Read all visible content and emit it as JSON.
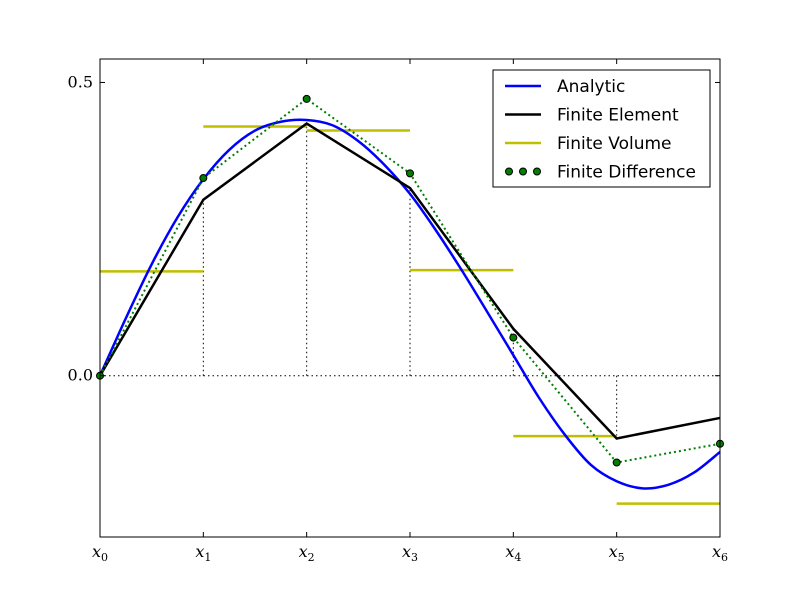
{
  "chart_data": {
    "type": "line",
    "title": "",
    "xlabel": "",
    "ylabel": "",
    "xlim": [
      0,
      6
    ],
    "ylim": [
      -0.275,
      0.54
    ],
    "grid": false,
    "legend_position": "top-right",
    "x_ticks": [
      {
        "value": 0,
        "base": "x",
        "sub": "0"
      },
      {
        "value": 1,
        "base": "x",
        "sub": "1"
      },
      {
        "value": 2,
        "base": "x",
        "sub": "2"
      },
      {
        "value": 3,
        "base": "x",
        "sub": "3"
      },
      {
        "value": 4,
        "base": "x",
        "sub": "4"
      },
      {
        "value": 5,
        "base": "x",
        "sub": "5"
      },
      {
        "value": 6,
        "base": "x",
        "sub": "6"
      }
    ],
    "y_ticks": [
      {
        "value": 0.0,
        "label": "0.0"
      },
      {
        "value": 0.5,
        "label": "0.5"
      }
    ],
    "colors": {
      "analytic": "#0000ff",
      "finite_element": "#000000",
      "finite_volume": "#bfbf00",
      "finite_difference_fill": "#007f00",
      "finite_difference_line": "#007f00"
    },
    "series": [
      {
        "key": "analytic",
        "name": "Analytic",
        "style": "smooth-line",
        "x": [
          0,
          0.25,
          0.5,
          0.75,
          1.0,
          1.25,
          1.5,
          1.75,
          2.0,
          2.25,
          2.5,
          2.75,
          3.0,
          3.25,
          3.5,
          3.75,
          4.0,
          4.25,
          4.5,
          4.75,
          5.0,
          5.25,
          5.5,
          5.75,
          6.0
        ],
        "y": [
          0,
          0.098,
          0.19,
          0.27,
          0.335,
          0.385,
          0.418,
          0.433,
          0.436,
          0.427,
          0.4,
          0.36,
          0.31,
          0.248,
          0.18,
          0.108,
          0.035,
          -0.038,
          -0.101,
          -0.152,
          -0.18,
          -0.192,
          -0.186,
          -0.165,
          -0.13
        ]
      },
      {
        "key": "finite_element",
        "name": "Finite Element",
        "style": "line",
        "x": [
          0,
          1,
          2,
          3,
          4,
          5,
          6
        ],
        "y": [
          0,
          0.3,
          0.43,
          0.32,
          0.08,
          -0.107,
          -0.072
        ]
      },
      {
        "key": "finite_volume",
        "name": "Finite Volume",
        "style": "steps",
        "segments": [
          {
            "x0": 0,
            "x1": 1,
            "y": 0.178
          },
          {
            "x0": 1,
            "x1": 2,
            "y": 0.425
          },
          {
            "x0": 2,
            "x1": 3,
            "y": 0.418
          },
          {
            "x0": 3,
            "x1": 4,
            "y": 0.18
          },
          {
            "x0": 4,
            "x1": 5,
            "y": -0.103
          },
          {
            "x0": 5,
            "x1": 6,
            "y": -0.218
          }
        ]
      },
      {
        "key": "finite_difference",
        "name": "Finite Difference",
        "style": "dotted-markers",
        "x": [
          0,
          1,
          2,
          3,
          4,
          5,
          6
        ],
        "y": [
          0,
          0.337,
          0.472,
          0.345,
          0.065,
          -0.148,
          -0.116
        ]
      }
    ]
  }
}
